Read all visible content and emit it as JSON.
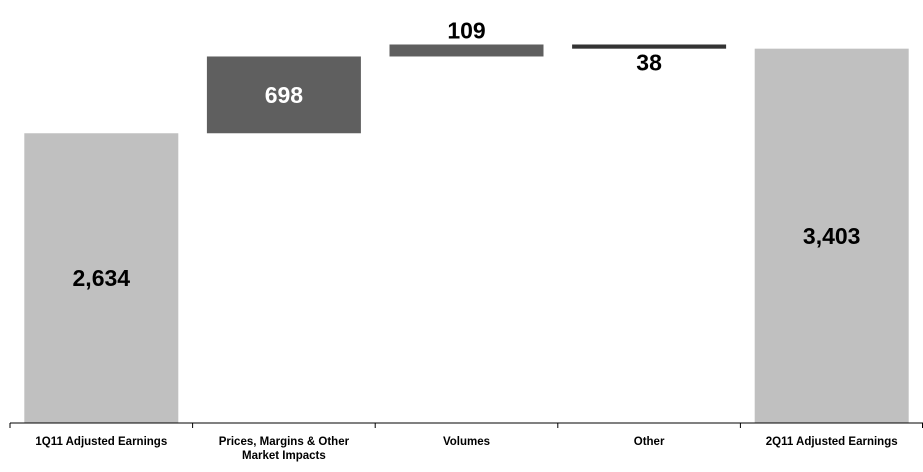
{
  "chart_data": {
    "type": "waterfall",
    "categories": [
      [
        "1Q11 Adjusted Earnings"
      ],
      [
        "Prices, Margins & Other",
        "Market Impacts"
      ],
      [
        "Volumes"
      ],
      [
        "Other"
      ],
      [
        "2Q11 Adjusted Earnings"
      ]
    ],
    "items": [
      {
        "kind": "total",
        "value": 2634,
        "label": "2,634"
      },
      {
        "kind": "delta",
        "value": 698,
        "label": "698"
      },
      {
        "kind": "delta",
        "value": 109,
        "label": "109"
      },
      {
        "kind": "delta",
        "value": -38,
        "label": "38"
      },
      {
        "kind": "total",
        "value": 3403,
        "label": "3,403"
      }
    ],
    "colors": {
      "total": "#c0c0c0",
      "delta": "#5f5f5f",
      "negative_delta": "#333333",
      "axis": "#000000"
    },
    "grid": false,
    "legend": "none"
  }
}
